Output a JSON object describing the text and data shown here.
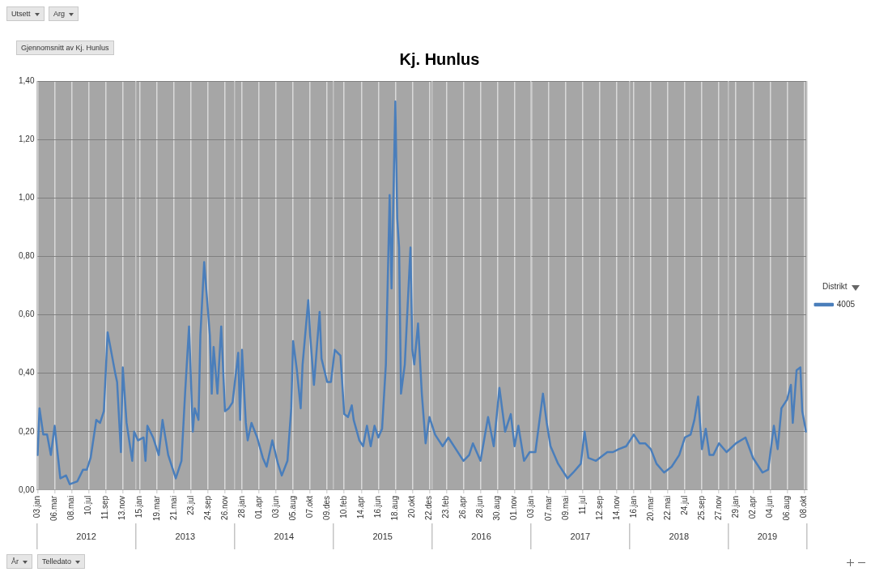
{
  "chart_data": {
    "type": "line",
    "title": "Kj. Hunlus",
    "x": [
      "2012-01-03",
      "2012-01-10",
      "2012-01-24",
      "2012-02-07",
      "2012-02-21",
      "2012-03-06",
      "2012-03-20",
      "2012-03-27",
      "2012-04-17",
      "2012-05-01",
      "2012-05-29",
      "2012-06-19",
      "2012-07-03",
      "2012-07-17",
      "2012-08-07",
      "2012-08-21",
      "2012-09-04",
      "2012-09-18",
      "2012-10-02",
      "2012-10-16",
      "2012-10-23",
      "2012-11-06",
      "2012-11-13",
      "2012-11-27",
      "2012-12-18",
      "2012-12-25",
      "2013-01-08",
      "2013-01-29",
      "2013-02-05",
      "2013-02-12",
      "2013-03-05",
      "2013-03-26",
      "2013-04-09",
      "2013-04-30",
      "2013-05-28",
      "2013-06-18",
      "2013-07-02",
      "2013-07-16",
      "2013-07-30",
      "2013-08-06",
      "2013-08-20",
      "2013-08-27",
      "2013-09-10",
      "2013-10-01",
      "2013-10-08",
      "2013-10-15",
      "2013-10-29",
      "2013-11-12",
      "2013-11-26",
      "2013-12-10",
      "2013-12-24",
      "2014-01-14",
      "2014-01-21",
      "2014-01-28",
      "2014-02-11",
      "2014-02-18",
      "2014-03-04",
      "2014-03-25",
      "2014-04-15",
      "2014-04-29",
      "2014-05-20",
      "2014-06-10",
      "2014-06-24",
      "2014-07-15",
      "2014-07-29",
      "2014-08-05",
      "2014-08-19",
      "2014-09-02",
      "2014-09-09",
      "2014-09-30",
      "2014-10-07",
      "2014-10-21",
      "2014-11-11",
      "2014-11-18",
      "2014-12-09",
      "2014-12-23",
      "2015-01-06",
      "2015-01-27",
      "2015-02-10",
      "2015-02-24",
      "2015-03-10",
      "2015-03-17",
      "2015-04-07",
      "2015-04-21",
      "2015-05-05",
      "2015-05-19",
      "2015-06-02",
      "2015-06-16",
      "2015-06-30",
      "2015-07-14",
      "2015-07-28",
      "2015-08-04",
      "2015-08-18",
      "2015-08-25",
      "2015-09-01",
      "2015-09-08",
      "2015-09-22",
      "2015-10-13",
      "2015-10-20",
      "2015-10-27",
      "2015-11-10",
      "2015-11-24",
      "2015-12-08",
      "2015-12-22",
      "2016-01-12",
      "2016-01-26",
      "2016-02-09",
      "2016-03-01",
      "2016-03-29",
      "2016-04-26",
      "2016-05-17",
      "2016-05-31",
      "2016-06-28",
      "2016-07-26",
      "2016-08-16",
      "2016-09-06",
      "2016-09-27",
      "2016-10-18",
      "2016-11-01",
      "2016-11-15",
      "2016-12-06",
      "2016-12-27",
      "2017-01-17",
      "2017-02-14",
      "2017-02-28",
      "2017-03-14",
      "2017-04-11",
      "2017-05-16",
      "2017-06-06",
      "2017-07-04",
      "2017-07-18",
      "2017-08-01",
      "2017-08-29",
      "2017-10-10",
      "2017-10-31",
      "2017-11-21",
      "2017-12-19",
      "2018-01-16",
      "2018-02-06",
      "2018-02-27",
      "2018-03-20",
      "2018-04-10",
      "2018-05-08",
      "2018-06-05",
      "2018-07-03",
      "2018-07-24",
      "2018-08-14",
      "2018-08-28",
      "2018-09-11",
      "2018-09-25",
      "2018-10-09",
      "2018-10-23",
      "2018-11-06",
      "2018-11-27",
      "2018-12-25",
      "2019-01-29",
      "2019-03-05",
      "2019-04-02",
      "2019-05-07",
      "2019-05-28",
      "2019-06-18",
      "2019-07-02",
      "2019-07-16",
      "2019-08-06",
      "2019-08-20",
      "2019-08-27",
      "2019-09-10",
      "2019-09-24",
      "2019-10-01",
      "2019-10-15"
    ],
    "series": [
      {
        "name": "4005",
        "color": "#4a7ebb",
        "values": [
          0.12,
          0.28,
          0.19,
          0.19,
          0.12,
          0.22,
          0.1,
          0.04,
          0.05,
          0.02,
          0.03,
          0.07,
          0.07,
          0.11,
          0.24,
          0.23,
          0.27,
          0.54,
          0.47,
          0.4,
          0.37,
          0.13,
          0.42,
          0.23,
          0.1,
          0.2,
          0.17,
          0.18,
          0.1,
          0.22,
          0.18,
          0.12,
          0.24,
          0.12,
          0.04,
          0.1,
          0.34,
          0.56,
          0.2,
          0.28,
          0.24,
          0.53,
          0.78,
          0.53,
          0.33,
          0.49,
          0.33,
          0.56,
          0.27,
          0.28,
          0.3,
          0.47,
          0.24,
          0.48,
          0.23,
          0.17,
          0.23,
          0.18,
          0.11,
          0.08,
          0.17,
          0.09,
          0.05,
          0.1,
          0.28,
          0.51,
          0.41,
          0.28,
          0.43,
          0.65,
          0.53,
          0.36,
          0.61,
          0.45,
          0.37,
          0.37,
          0.48,
          0.46,
          0.26,
          0.25,
          0.29,
          0.24,
          0.17,
          0.15,
          0.22,
          0.15,
          0.22,
          0.18,
          0.21,
          0.43,
          1.01,
          0.69,
          1.33,
          0.93,
          0.83,
          0.33,
          0.43,
          0.83,
          0.48,
          0.43,
          0.57,
          0.33,
          0.16,
          0.25,
          0.19,
          0.17,
          0.15,
          0.18,
          0.14,
          0.1,
          0.12,
          0.16,
          0.1,
          0.25,
          0.15,
          0.35,
          0.2,
          0.26,
          0.15,
          0.22,
          0.1,
          0.13,
          0.13,
          0.33,
          0.23,
          0.15,
          0.09,
          0.04,
          0.06,
          0.09,
          0.2,
          0.11,
          0.1,
          0.13,
          0.13,
          0.14,
          0.15,
          0.19,
          0.16,
          0.16,
          0.14,
          0.09,
          0.06,
          0.08,
          0.12,
          0.18,
          0.19,
          0.24,
          0.32,
          0.14,
          0.21,
          0.12,
          0.12,
          0.16,
          0.13,
          0.16,
          0.18,
          0.11,
          0.06,
          0.07,
          0.22,
          0.14,
          0.28,
          0.31,
          0.36,
          0.23,
          0.41,
          0.42,
          0.27,
          0.2
        ]
      }
    ],
    "xlim": [
      "2011-12-31",
      "2019-10-18"
    ],
    "xticks": [
      {
        "value": "2012-01-03",
        "label": "03.jan"
      },
      {
        "value": "2012-03-06",
        "label": "06.mar"
      },
      {
        "value": "2012-05-08",
        "label": "08.mai"
      },
      {
        "value": "2012-07-10",
        "label": "10.jul"
      },
      {
        "value": "2012-09-11",
        "label": "11.sep"
      },
      {
        "value": "2012-11-13",
        "label": "13.nov"
      },
      {
        "value": "2013-01-15",
        "label": "15.jan"
      },
      {
        "value": "2013-03-19",
        "label": "19.mar"
      },
      {
        "value": "2013-05-21",
        "label": "21.mai"
      },
      {
        "value": "2013-07-23",
        "label": "23.jul"
      },
      {
        "value": "2013-09-24",
        "label": "24.sep"
      },
      {
        "value": "2013-11-26",
        "label": "26.nov"
      },
      {
        "value": "2014-01-28",
        "label": "28.jan"
      },
      {
        "value": "2014-04-01",
        "label": "01.apr"
      },
      {
        "value": "2014-06-03",
        "label": "03.jun"
      },
      {
        "value": "2014-08-05",
        "label": "05.aug"
      },
      {
        "value": "2014-10-07",
        "label": "07.okt"
      },
      {
        "value": "2014-12-09",
        "label": "09.des"
      },
      {
        "value": "2015-02-10",
        "label": "10.feb"
      },
      {
        "value": "2015-04-14",
        "label": "14.apr"
      },
      {
        "value": "2015-06-16",
        "label": "16.jun"
      },
      {
        "value": "2015-08-18",
        "label": "18.aug"
      },
      {
        "value": "2015-10-20",
        "label": "20.okt"
      },
      {
        "value": "2015-12-22",
        "label": "22.des"
      },
      {
        "value": "2016-02-23",
        "label": "23.feb"
      },
      {
        "value": "2016-04-26",
        "label": "26.apr"
      },
      {
        "value": "2016-06-28",
        "label": "28.jun"
      },
      {
        "value": "2016-08-30",
        "label": "30.aug"
      },
      {
        "value": "2016-11-01",
        "label": "01.nov"
      },
      {
        "value": "2017-01-03",
        "label": "03.jan"
      },
      {
        "value": "2017-03-07",
        "label": "07.mar"
      },
      {
        "value": "2017-05-09",
        "label": "09.mai"
      },
      {
        "value": "2017-07-11",
        "label": "11.jul"
      },
      {
        "value": "2017-09-12",
        "label": "12.sep"
      },
      {
        "value": "2017-11-14",
        "label": "14.nov"
      },
      {
        "value": "2018-01-16",
        "label": "16.jan"
      },
      {
        "value": "2018-03-20",
        "label": "20.mar"
      },
      {
        "value": "2018-05-22",
        "label": "22.mai"
      },
      {
        "value": "2018-07-24",
        "label": "24.jul"
      },
      {
        "value": "2018-09-25",
        "label": "25.sep"
      },
      {
        "value": "2018-11-27",
        "label": "27.nov"
      },
      {
        "value": "2019-01-29",
        "label": "29.jan"
      },
      {
        "value": "2019-04-02",
        "label": "02.apr"
      },
      {
        "value": "2019-06-04",
        "label": "04.jun"
      },
      {
        "value": "2019-08-06",
        "label": "06.aug"
      },
      {
        "value": "2019-10-08",
        "label": "08.okt"
      }
    ],
    "x2lim": [
      "2011-12-31",
      "2019-10-18"
    ],
    "x2ticks": [
      {
        "value": "2011-12-31",
        "label": null
      },
      {
        "value": "2012-07-01",
        "label": "2012"
      },
      {
        "value": "2013-01-01",
        "label": null
      },
      {
        "value": "2013-07-02",
        "label": "2013"
      },
      {
        "value": "2014-01-01",
        "label": null
      },
      {
        "value": "2014-07-02",
        "label": "2014"
      },
      {
        "value": "2015-01-01",
        "label": null
      },
      {
        "value": "2015-07-02",
        "label": "2015"
      },
      {
        "value": "2016-01-01",
        "label": null
      },
      {
        "value": "2016-07-01",
        "label": "2016"
      },
      {
        "value": "2017-01-01",
        "label": null
      },
      {
        "value": "2017-07-02",
        "label": "2017"
      },
      {
        "value": "2018-01-01",
        "label": null
      },
      {
        "value": "2018-07-02",
        "label": "2018"
      },
      {
        "value": "2019-01-01",
        "label": null
      },
      {
        "value": "2019-05-25",
        "label": "2019"
      },
      {
        "value": "2019-10-18",
        "label": null
      }
    ],
    "ylim": [
      0,
      1.4
    ],
    "yticks": [
      {
        "value": 0,
        "label": "0,00"
      },
      {
        "value": 0.2,
        "label": "0,20"
      },
      {
        "value": 0.4,
        "label": "0,40"
      },
      {
        "value": 0.6,
        "label": "0,60"
      },
      {
        "value": 0.8,
        "label": "0,80"
      },
      {
        "value": 1.0,
        "label": "1,00"
      },
      {
        "value": 1.2,
        "label": "1,20"
      },
      {
        "value": 1.4,
        "label": "1,40"
      }
    ],
    "grid": true,
    "legend": "right",
    "legend_title": "Distrikt",
    "annotations": [
      "Utsett",
      "Arg",
      "Gjennomsnitt av Kj. Hunlus",
      "År",
      "Telledato"
    ]
  }
}
